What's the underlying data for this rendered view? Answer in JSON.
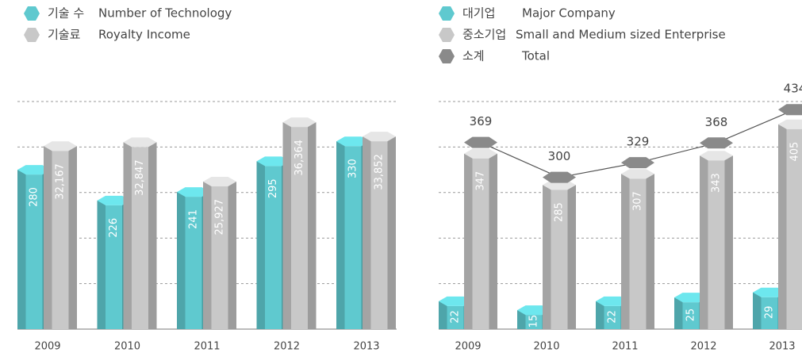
{
  "chart_data": [
    {
      "type": "bar",
      "categories": [
        "2009",
        "2010",
        "2011",
        "2012",
        "2013"
      ],
      "series": [
        {
          "name": "기술 수",
          "name_en": "Number of Technology",
          "color": "#5fc9cf",
          "values": [
            280,
            226,
            241,
            295,
            330
          ]
        },
        {
          "name": "기술료",
          "name_en": "Royalty Income",
          "color": "#c8c8c8",
          "axis": "y2",
          "values": [
            32167,
            32847,
            25927,
            36364,
            33852
          ],
          "value_labels": [
            "32,167",
            "32,847",
            "25,927",
            "36,364",
            "33,852"
          ]
        }
      ],
      "ylim": [
        0,
        400
      ],
      "yticks": [
        0,
        80,
        160,
        240,
        320,
        400
      ],
      "y2lim": [
        0,
        40000
      ],
      "grid": true
    },
    {
      "type": "combo",
      "categories": [
        "2009",
        "2010",
        "2011",
        "2012",
        "2013"
      ],
      "series": [
        {
          "name": "대기업",
          "name_en": "Major Company",
          "color": "#5fc9cf",
          "axis": "y2",
          "values": [
            22,
            15,
            22,
            25,
            29
          ]
        },
        {
          "name": "중소기업",
          "name_en": "Small and Medium sized Enterprise",
          "color": "#c8c8c8",
          "values": [
            347,
            285,
            307,
            343,
            405
          ]
        },
        {
          "name": "소계",
          "name_en": "Total",
          "color": "#8a8a8a",
          "type": "line",
          "values": [
            369,
            300,
            329,
            368,
            434
          ]
        }
      ],
      "ylim": [
        0,
        450
      ],
      "yticks": [
        0,
        90,
        180,
        270,
        360,
        450
      ],
      "y2lim": [
        0,
        180
      ],
      "grid": true
    }
  ]
}
